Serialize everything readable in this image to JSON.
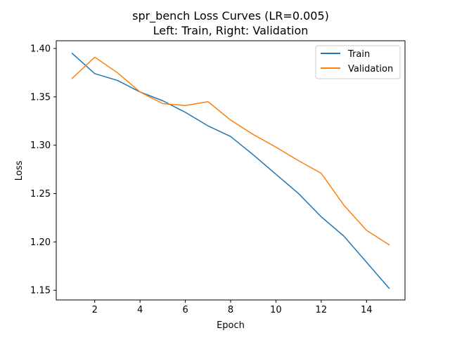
{
  "chart_data": {
    "type": "line",
    "title": "spr_bench Loss Curves (LR=0.005)",
    "subtitle": "Left: Train, Right: Validation",
    "xlabel": "Epoch",
    "ylabel": "Loss",
    "xlim": [
      0.3,
      15.7
    ],
    "ylim": [
      1.14,
      1.408
    ],
    "xticks": [
      2,
      4,
      6,
      8,
      10,
      12,
      14
    ],
    "yticks": [
      1.15,
      1.2,
      1.25,
      1.3,
      1.35,
      1.4
    ],
    "xtick_labels": [
      "2",
      "4",
      "6",
      "8",
      "10",
      "12",
      "14"
    ],
    "ytick_labels": [
      "1.15",
      "1.20",
      "1.25",
      "1.30",
      "1.35",
      "1.40"
    ],
    "grid": false,
    "legend_position": "top-right",
    "x": [
      1,
      2,
      3,
      4,
      5,
      6,
      7,
      8,
      9,
      10,
      11,
      12,
      13,
      14,
      15
    ],
    "series": [
      {
        "name": "Train",
        "color": "#1f77b4",
        "values": [
          1.395,
          1.374,
          1.367,
          1.355,
          1.346,
          1.334,
          1.32,
          1.309,
          1.29,
          1.27,
          1.25,
          1.226,
          1.206,
          1.179,
          1.152
        ]
      },
      {
        "name": "Validation",
        "color": "#ff7f0e",
        "values": [
          1.369,
          1.391,
          1.375,
          1.355,
          1.343,
          1.341,
          1.345,
          1.326,
          1.311,
          1.298,
          1.284,
          1.271,
          1.238,
          1.212,
          1.197
        ]
      }
    ]
  }
}
